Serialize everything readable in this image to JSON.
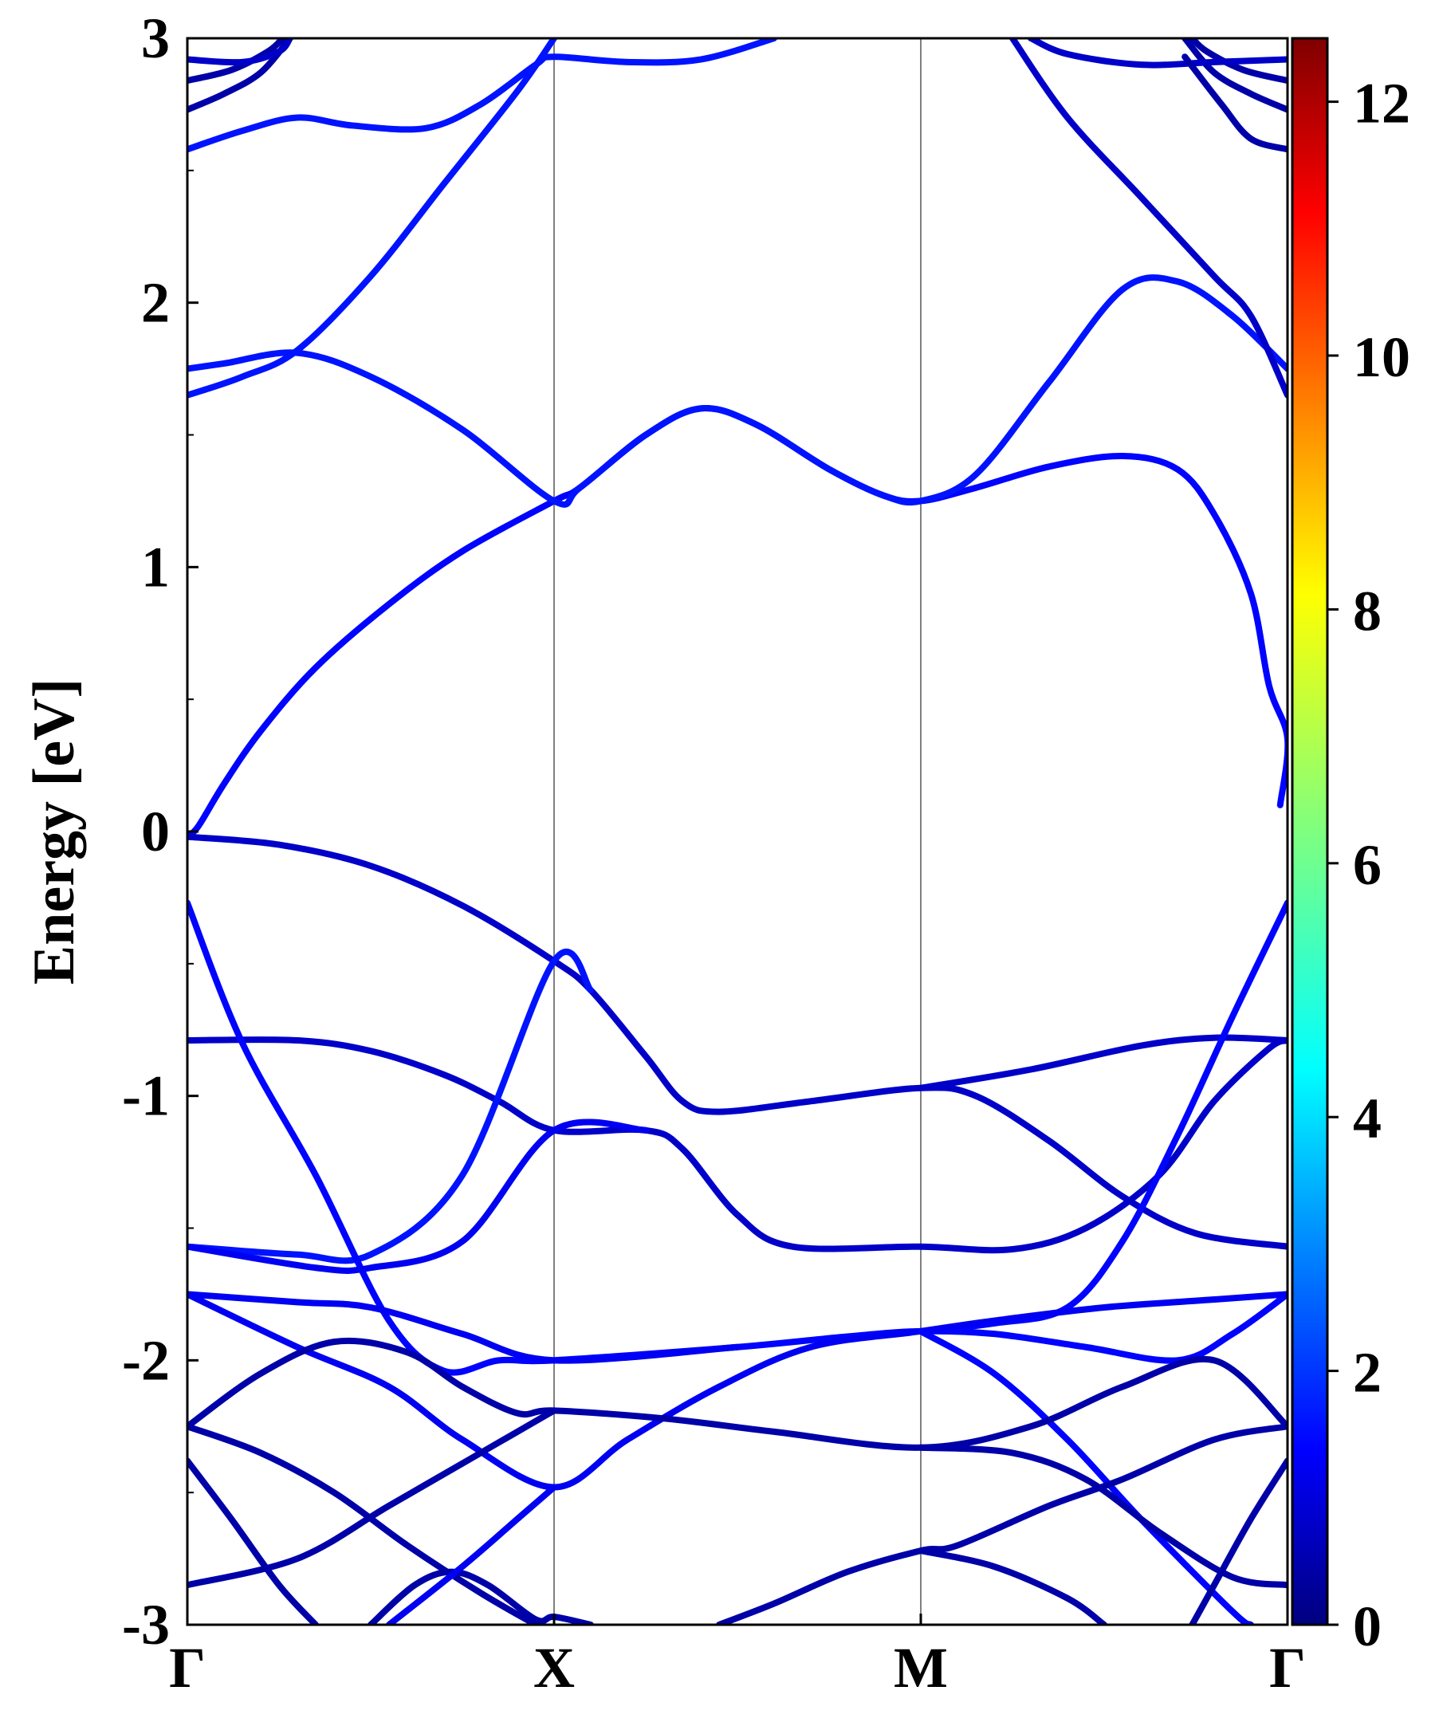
{
  "chart_data": {
    "type": "line",
    "ylabel": "Energy [eV]",
    "xlabel": "",
    "ylim": [
      -3,
      3
    ],
    "yticks": [
      "3",
      "2",
      "1",
      "0",
      "-1",
      "-2",
      "-3"
    ],
    "kpath": {
      "labels": [
        "Γ",
        "X",
        "M",
        "Γ"
      ],
      "positions": [
        0,
        1,
        2,
        3
      ]
    },
    "colorbar": {
      "range": [
        0,
        12.5
      ],
      "ticks": [
        "0",
        "2",
        "4",
        "6",
        "8",
        "10",
        "12"
      ],
      "tick_values": [
        0,
        2,
        4,
        6,
        8,
        10,
        12
      ],
      "colormap": "jet"
    },
    "grid": false,
    "series": [
      {
        "weight": 1.6,
        "points": [
          [
            0,
            -0.02
          ],
          [
            0.03,
            0.02
          ],
          [
            0.1,
            0.18
          ],
          [
            0.2,
            0.38
          ],
          [
            0.35,
            0.62
          ],
          [
            0.55,
            0.86
          ],
          [
            0.75,
            1.06
          ],
          [
            1.0,
            1.25
          ],
          [
            1.07,
            1.3
          ],
          [
            1.25,
            1.5
          ],
          [
            1.4,
            1.6
          ],
          [
            1.55,
            1.54
          ],
          [
            1.75,
            1.37
          ],
          [
            1.9,
            1.27
          ],
          [
            2.0,
            1.25
          ],
          [
            2.15,
            1.3
          ],
          [
            2.35,
            1.38
          ],
          [
            2.55,
            1.42
          ],
          [
            2.7,
            1.37
          ],
          [
            2.8,
            1.2
          ],
          [
            2.9,
            0.9
          ],
          [
            2.95,
            0.55
          ],
          [
            3.0,
            0.35
          ],
          [
            2.98,
            0.1
          ]
        ]
      },
      {
        "weight": 1.8,
        "points": [
          [
            0,
            1.75
          ],
          [
            0.1,
            1.77
          ],
          [
            0.3,
            1.81
          ],
          [
            0.5,
            1.72
          ],
          [
            0.75,
            1.52
          ],
          [
            1.0,
            1.25
          ],
          [
            1.07,
            1.3
          ],
          [
            1.25,
            1.5
          ],
          [
            1.4,
            1.6
          ],
          [
            1.55,
            1.54
          ],
          [
            1.75,
            1.37
          ],
          [
            1.9,
            1.27
          ],
          [
            2.0,
            1.25
          ],
          [
            2.15,
            1.35
          ],
          [
            2.35,
            1.7
          ],
          [
            2.55,
            2.05
          ],
          [
            2.7,
            2.08
          ],
          [
            2.85,
            1.95
          ],
          [
            3.0,
            1.75
          ]
        ]
      },
      {
        "weight": 1.8,
        "points": [
          [
            0,
            1.65
          ],
          [
            0.15,
            1.72
          ],
          [
            0.3,
            1.82
          ],
          [
            0.5,
            2.1
          ],
          [
            0.7,
            2.45
          ],
          [
            0.9,
            2.8
          ],
          [
            1.0,
            3.0
          ]
        ]
      },
      {
        "weight": 0.9,
        "points": [
          [
            2.25,
            3.0
          ],
          [
            2.4,
            2.7
          ],
          [
            2.6,
            2.4
          ],
          [
            2.8,
            2.1
          ],
          [
            2.9,
            1.95
          ],
          [
            3.0,
            1.65
          ]
        ]
      },
      {
        "weight": 1.8,
        "points": [
          [
            0,
            2.58
          ],
          [
            0.15,
            2.65
          ],
          [
            0.3,
            2.7
          ],
          [
            0.45,
            2.67
          ],
          [
            0.65,
            2.66
          ],
          [
            0.8,
            2.75
          ],
          [
            0.95,
            2.9
          ],
          [
            1.0,
            2.93
          ],
          [
            1.2,
            2.91
          ],
          [
            1.4,
            2.92
          ],
          [
            1.6,
            3.0
          ]
        ]
      },
      {
        "weight": 0.5,
        "points": [
          [
            0,
            2.73
          ],
          [
            0.1,
            2.79
          ],
          [
            0.2,
            2.87
          ],
          [
            0.28,
            3.0
          ]
        ]
      },
      {
        "weight": 0.5,
        "points": [
          [
            0,
            2.84
          ],
          [
            0.12,
            2.88
          ],
          [
            0.22,
            2.95
          ],
          [
            0.26,
            3.0
          ]
        ]
      },
      {
        "weight": 0.9,
        "points": [
          [
            0,
            2.92
          ],
          [
            0.15,
            2.91
          ],
          [
            0.25,
            2.95
          ],
          [
            0.28,
            3.0
          ]
        ]
      },
      {
        "weight": 0.5,
        "points": [
          [
            3.0,
            2.73
          ],
          [
            2.9,
            2.79
          ],
          [
            2.8,
            2.87
          ],
          [
            2.72,
            3.0
          ]
        ]
      },
      {
        "weight": 0.5,
        "points": [
          [
            3.0,
            2.84
          ],
          [
            2.88,
            2.88
          ],
          [
            2.78,
            2.95
          ],
          [
            2.74,
            3.0
          ]
        ]
      },
      {
        "weight": 0.9,
        "points": [
          [
            3.0,
            2.92
          ],
          [
            2.8,
            2.91
          ],
          [
            2.6,
            2.9
          ],
          [
            2.4,
            2.94
          ],
          [
            2.3,
            3.0
          ]
        ]
      },
      {
        "weight": 0.5,
        "points": [
          [
            3.0,
            2.58
          ],
          [
            2.9,
            2.62
          ],
          [
            2.82,
            2.75
          ],
          [
            2.72,
            2.93
          ]
        ]
      },
      {
        "weight": 0.9,
        "points": [
          [
            0,
            -0.02
          ],
          [
            0.25,
            -0.05
          ],
          [
            0.5,
            -0.13
          ],
          [
            0.75,
            -0.28
          ],
          [
            1.0,
            -0.49
          ],
          [
            1.1,
            -0.6
          ],
          [
            1.25,
            -0.85
          ],
          [
            1.35,
            -1.02
          ],
          [
            1.45,
            -1.06
          ],
          [
            1.7,
            -1.02
          ],
          [
            2.0,
            -0.97
          ],
          [
            2.15,
            -1.0
          ],
          [
            2.35,
            -1.17
          ],
          [
            2.55,
            -1.38
          ],
          [
            2.75,
            -1.52
          ],
          [
            3.0,
            -1.57
          ]
        ]
      },
      {
        "weight": 0.9,
        "points": [
          [
            0,
            -0.79
          ],
          [
            0.3,
            -0.79
          ],
          [
            0.5,
            -0.83
          ],
          [
            0.7,
            -0.92
          ],
          [
            0.85,
            -1.02
          ],
          [
            1.0,
            -1.13
          ],
          [
            1.25,
            -1.13
          ],
          [
            1.35,
            -1.2
          ],
          [
            1.5,
            -1.45
          ],
          [
            1.65,
            -1.57
          ],
          [
            2.0,
            -1.57
          ],
          [
            2.25,
            -1.58
          ],
          [
            2.45,
            -1.5
          ],
          [
            2.65,
            -1.3
          ],
          [
            2.8,
            -1.02
          ],
          [
            2.95,
            -0.82
          ],
          [
            3.0,
            -0.79
          ]
        ]
      },
      {
        "weight": 0.9,
        "points": [
          [
            2.0,
            -0.97
          ],
          [
            2.3,
            -0.9
          ],
          [
            2.6,
            -0.81
          ],
          [
            2.8,
            -0.78
          ],
          [
            3.0,
            -0.79
          ]
        ]
      },
      {
        "weight": 1.8,
        "points": [
          [
            0,
            -1.57
          ],
          [
            0.3,
            -1.6
          ],
          [
            0.5,
            -1.6
          ],
          [
            0.75,
            -1.3
          ],
          [
            1.0,
            -0.49
          ],
          [
            1.1,
            -0.6
          ]
        ]
      },
      {
        "weight": 1.6,
        "points": [
          [
            0,
            -0.27
          ],
          [
            0.15,
            -0.8
          ],
          [
            0.35,
            -1.3
          ],
          [
            0.55,
            -1.85
          ],
          [
            0.7,
            -2.04
          ],
          [
            0.85,
            -2.0
          ],
          [
            1.0,
            -2.0
          ],
          [
            1.5,
            -1.95
          ],
          [
            1.8,
            -1.91
          ],
          [
            2.0,
            -1.89
          ],
          [
            2.2,
            -1.9
          ],
          [
            2.45,
            -1.95
          ],
          [
            2.7,
            -2.0
          ],
          [
            2.85,
            -1.9
          ],
          [
            3.0,
            -1.75
          ]
        ]
      },
      {
        "weight": 1.6,
        "points": [
          [
            3.0,
            -0.27
          ],
          [
            2.85,
            -0.7
          ],
          [
            2.7,
            -1.15
          ],
          [
            2.55,
            -1.55
          ],
          [
            2.4,
            -1.8
          ],
          [
            2.2,
            -1.86
          ],
          [
            2.0,
            -1.89
          ]
        ]
      },
      {
        "weight": 1.4,
        "points": [
          [
            0,
            -1.57
          ],
          [
            0.35,
            -1.65
          ],
          [
            0.5,
            -1.65
          ],
          [
            0.75,
            -1.55
          ],
          [
            1.0,
            -1.13
          ],
          [
            1.25,
            -1.13
          ]
        ]
      },
      {
        "weight": 1.4,
        "points": [
          [
            0,
            -1.75
          ],
          [
            0.3,
            -1.78
          ],
          [
            0.5,
            -1.8
          ],
          [
            0.75,
            -1.9
          ],
          [
            1.0,
            -2.0
          ],
          [
            1.5,
            -1.95
          ]
        ]
      },
      {
        "weight": 1.4,
        "points": [
          [
            0,
            -1.75
          ],
          [
            0.3,
            -1.95
          ],
          [
            0.55,
            -2.1
          ],
          [
            0.75,
            -2.3
          ],
          [
            1.0,
            -2.48
          ],
          [
            1.2,
            -2.3
          ],
          [
            1.45,
            -2.1
          ],
          [
            1.7,
            -1.95
          ],
          [
            2.0,
            -1.89
          ],
          [
            2.2,
            -1.85
          ],
          [
            2.5,
            -1.8
          ],
          [
            2.8,
            -1.77
          ],
          [
            3.0,
            -1.75
          ]
        ]
      },
      {
        "weight": 1.6,
        "points": [
          [
            2.0,
            -1.89
          ],
          [
            2.2,
            -2.05
          ],
          [
            2.4,
            -2.3
          ],
          [
            2.6,
            -2.6
          ],
          [
            2.85,
            -2.95
          ],
          [
            2.9,
            -3.0
          ]
        ]
      },
      {
        "weight": 0.5,
        "points": [
          [
            0,
            -2.25
          ],
          [
            0.2,
            -2.05
          ],
          [
            0.4,
            -1.93
          ],
          [
            0.6,
            -1.97
          ],
          [
            0.75,
            -2.1
          ],
          [
            0.9,
            -2.2
          ],
          [
            1.0,
            -2.19
          ],
          [
            1.3,
            -2.22
          ],
          [
            1.6,
            -2.27
          ],
          [
            2.0,
            -2.33
          ],
          [
            2.3,
            -2.25
          ],
          [
            2.55,
            -2.1
          ],
          [
            2.8,
            -2.0
          ],
          [
            3.0,
            -2.25
          ]
        ]
      },
      {
        "weight": 0.5,
        "points": [
          [
            0,
            -2.25
          ],
          [
            0.2,
            -2.35
          ],
          [
            0.4,
            -2.5
          ],
          [
            0.6,
            -2.7
          ],
          [
            0.8,
            -2.88
          ],
          [
            0.95,
            -3.0
          ]
        ]
      },
      {
        "weight": 0.5,
        "points": [
          [
            0,
            -2.85
          ],
          [
            0.3,
            -2.75
          ],
          [
            0.55,
            -2.55
          ],
          [
            0.8,
            -2.35
          ],
          [
            1.0,
            -2.19
          ]
        ]
      },
      {
        "weight": 0.5,
        "points": [
          [
            0,
            -2.38
          ],
          [
            0.12,
            -2.6
          ],
          [
            0.25,
            -2.85
          ],
          [
            0.35,
            -3.0
          ]
        ]
      },
      {
        "weight": 0.5,
        "points": [
          [
            3.0,
            -2.25
          ],
          [
            2.8,
            -2.3
          ],
          [
            2.55,
            -2.45
          ],
          [
            2.35,
            -2.55
          ],
          [
            2.1,
            -2.7
          ],
          [
            2.0,
            -2.72
          ],
          [
            1.8,
            -2.8
          ],
          [
            1.6,
            -2.92
          ],
          [
            1.45,
            -3.0
          ]
        ]
      },
      {
        "weight": 0.5,
        "points": [
          [
            2.0,
            -2.72
          ],
          [
            2.2,
            -2.78
          ],
          [
            2.4,
            -2.9
          ],
          [
            2.5,
            -3.0
          ]
        ]
      },
      {
        "weight": 0.5,
        "points": [
          [
            3.0,
            -2.85
          ],
          [
            2.85,
            -2.82
          ],
          [
            2.65,
            -2.65
          ],
          [
            2.45,
            -2.45
          ],
          [
            2.25,
            -2.35
          ],
          [
            2.0,
            -2.33
          ]
        ]
      },
      {
        "weight": 0.5,
        "points": [
          [
            3.0,
            -2.38
          ],
          [
            2.9,
            -2.6
          ],
          [
            2.8,
            -2.85
          ],
          [
            2.74,
            -3.0
          ]
        ]
      },
      {
        "weight": 0.5,
        "points": [
          [
            0.5,
            -3.0
          ],
          [
            0.62,
            -2.85
          ],
          [
            0.72,
            -2.8
          ],
          [
            0.82,
            -2.85
          ],
          [
            0.95,
            -2.98
          ],
          [
            1.0,
            -2.97
          ],
          [
            1.1,
            -3.0
          ]
        ]
      },
      {
        "weight": 1.4,
        "points": [
          [
            0.55,
            -3.0
          ],
          [
            0.75,
            -2.78
          ],
          [
            0.9,
            -2.6
          ],
          [
            1.0,
            -2.48
          ]
        ]
      }
    ]
  }
}
